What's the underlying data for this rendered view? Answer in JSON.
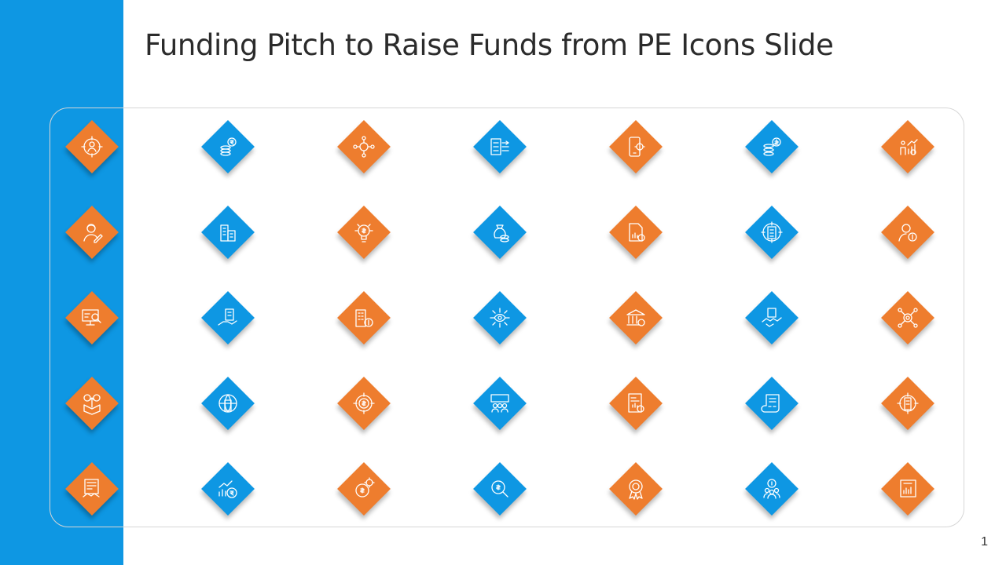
{
  "slide": {
    "title": "Funding Pitch to Raise Funds from PE Icons Slide",
    "page_number": "1"
  },
  "colors": {
    "blue": "#0e97e3",
    "orange": "#ee7d2e"
  },
  "icon_rows": [
    [
      {
        "icon": "target-person-icon",
        "color": "orange"
      },
      {
        "icon": "rupee-coins-icon",
        "color": "blue"
      },
      {
        "icon": "network-hub-icon",
        "color": "orange"
      },
      {
        "icon": "flow-chart-icon",
        "color": "blue"
      },
      {
        "icon": "mobile-gear-icon",
        "color": "orange"
      },
      {
        "icon": "dollar-coins-icon",
        "color": "blue"
      },
      {
        "icon": "growth-people-icon",
        "color": "orange"
      }
    ],
    [
      {
        "icon": "person-writing-icon",
        "color": "orange"
      },
      {
        "icon": "buildings-icon",
        "color": "blue"
      },
      {
        "icon": "idea-bulb-icon",
        "color": "orange"
      },
      {
        "icon": "money-bag-icon",
        "color": "blue"
      },
      {
        "icon": "report-document-icon",
        "color": "orange"
      },
      {
        "icon": "target-building-icon",
        "color": "blue"
      },
      {
        "icon": "person-idea-icon",
        "color": "orange"
      }
    ],
    [
      {
        "icon": "presentation-search-icon",
        "color": "orange"
      },
      {
        "icon": "hand-building-icon",
        "color": "blue"
      },
      {
        "icon": "building-dollar-icon",
        "color": "orange"
      },
      {
        "icon": "eye-network-icon",
        "color": "blue"
      },
      {
        "icon": "bank-icon",
        "color": "orange"
      },
      {
        "icon": "handshake-icon",
        "color": "blue"
      },
      {
        "icon": "gear-network-icon",
        "color": "orange"
      }
    ],
    [
      {
        "icon": "box-currency-icon",
        "color": "orange"
      },
      {
        "icon": "globe-city-icon",
        "color": "blue"
      },
      {
        "icon": "target-dollar-icon",
        "color": "orange"
      },
      {
        "icon": "team-board-icon",
        "color": "blue"
      },
      {
        "icon": "document-chart-icon",
        "color": "orange"
      },
      {
        "icon": "contract-scroll-icon",
        "color": "blue"
      },
      {
        "icon": "target-skyscraper-icon",
        "color": "orange"
      }
    ],
    [
      {
        "icon": "contract-handshake-icon",
        "color": "orange"
      },
      {
        "icon": "growth-rupee-icon",
        "color": "blue"
      },
      {
        "icon": "gear-dollar-icon",
        "color": "orange"
      },
      {
        "icon": "dollar-search-icon",
        "color": "blue"
      },
      {
        "icon": "award-badge-icon",
        "color": "orange"
      },
      {
        "icon": "team-dollar-icon",
        "color": "blue"
      },
      {
        "icon": "report-board-icon",
        "color": "orange"
      }
    ]
  ]
}
